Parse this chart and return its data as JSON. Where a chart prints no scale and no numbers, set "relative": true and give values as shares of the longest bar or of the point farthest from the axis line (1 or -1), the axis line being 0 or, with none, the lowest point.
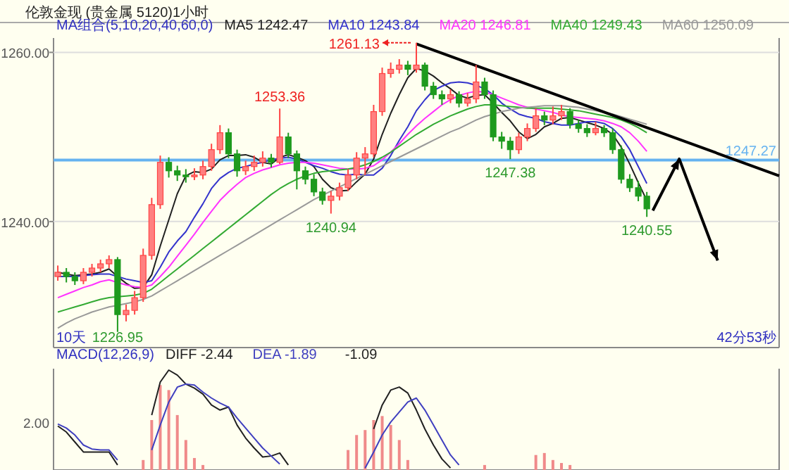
{
  "chart_data": [
    {
      "type": "candlestick",
      "title": "伦敦金现 (贵金属 5120)1小时",
      "subtitle": "MA组合(5,10,20,40,60,0)",
      "legend": "top",
      "categories": [
        null,
        null,
        null,
        null,
        null,
        null,
        null,
        null,
        null,
        null,
        null,
        null,
        null,
        null,
        null,
        null,
        null,
        null,
        null,
        null,
        null,
        null,
        null,
        null,
        null,
        null,
        null,
        null,
        null,
        null,
        null,
        null,
        null,
        null,
        null,
        null,
        null,
        null,
        null,
        null,
        null,
        null,
        null,
        null,
        null,
        null,
        null,
        null,
        null,
        null,
        null,
        null,
        null,
        null,
        null,
        null,
        null,
        null,
        null,
        null,
        null,
        null,
        null,
        null,
        null,
        null,
        null,
        null,
        null,
        null
      ],
      "ohlc": [
        [
          1233.5,
          1234.8,
          1233,
          1234
        ],
        [
          1234,
          1234.5,
          1232.8,
          1233.5
        ],
        [
          1233.5,
          1234,
          1232.5,
          1233
        ],
        [
          1233,
          1234.5,
          1232.6,
          1234
        ],
        [
          1234,
          1235,
          1233.5,
          1234.5
        ],
        [
          1234.5,
          1235.5,
          1234,
          1235
        ],
        [
          1235,
          1236,
          1234.5,
          1235.5
        ],
        [
          1235.5,
          1235.8,
          1226.95,
          1229
        ],
        [
          1229,
          1230.2,
          1228.2,
          1229.5
        ],
        [
          1229.5,
          1231.8,
          1229,
          1231
        ],
        [
          1231,
          1236.8,
          1230.5,
          1236
        ],
        [
          1236,
          1242.8,
          1235.5,
          1242
        ],
        [
          1242,
          1247.8,
          1241.5,
          1247
        ],
        [
          1247,
          1247.6,
          1245.2,
          1246
        ],
        [
          1246,
          1246.6,
          1244.8,
          1245.5
        ],
        [
          1245.5,
          1246.2,
          1244.6,
          1245.3
        ],
        [
          1245.3,
          1246.3,
          1244.9,
          1245.5
        ],
        [
          1245.5,
          1247.2,
          1245,
          1246.5
        ],
        [
          1246.5,
          1249.2,
          1246,
          1248.5
        ],
        [
          1248.5,
          1251.4,
          1248,
          1250.5
        ],
        [
          1250.5,
          1251,
          1247.5,
          1248
        ],
        [
          1248,
          1248.5,
          1245.3,
          1246
        ],
        [
          1246,
          1247.2,
          1245.5,
          1246.5
        ],
        [
          1246.5,
          1247.8,
          1246,
          1247
        ],
        [
          1247,
          1248.3,
          1246.5,
          1247.5
        ],
        [
          1247.5,
          1248,
          1246.4,
          1247
        ],
        [
          1247,
          1253.36,
          1246.8,
          1250
        ],
        [
          1250,
          1250.5,
          1247.5,
          1248
        ],
        [
          1248,
          1248.4,
          1243.8,
          1246
        ],
        [
          1246,
          1246.5,
          1244.4,
          1245
        ],
        [
          1245,
          1245.6,
          1243,
          1243.5
        ],
        [
          1243.5,
          1244,
          1242,
          1242.5
        ],
        [
          1242.5,
          1243.6,
          1240.94,
          1243
        ],
        [
          1243,
          1244.6,
          1242.5,
          1244
        ],
        [
          1244,
          1246.2,
          1243.6,
          1245.5
        ],
        [
          1245.5,
          1248.2,
          1245,
          1247.5
        ],
        [
          1247.5,
          1248.8,
          1245.5,
          1248
        ],
        [
          1248,
          1253.8,
          1247.6,
          1253
        ],
        [
          1253,
          1258.2,
          1252.5,
          1257.5
        ],
        [
          1257.5,
          1258.8,
          1257,
          1258
        ],
        [
          1258,
          1259.2,
          1257.5,
          1258.5
        ],
        [
          1258.5,
          1259,
          1257.3,
          1258
        ],
        [
          1258,
          1261.13,
          1257.6,
          1258.5
        ],
        [
          1258.5,
          1258.8,
          1255.5,
          1256
        ],
        [
          1256,
          1256.5,
          1254.5,
          1255
        ],
        [
          1255,
          1255.5,
          1253.8,
          1254.5
        ],
        [
          1254.5,
          1255.6,
          1254,
          1255
        ],
        [
          1255,
          1255.4,
          1253.5,
          1254
        ],
        [
          1254,
          1255.2,
          1253.6,
          1254.5
        ],
        [
          1254.5,
          1258.5,
          1254,
          1256.5
        ],
        [
          1256.5,
          1257,
          1254.5,
          1255
        ],
        [
          1255,
          1255.5,
          1249.5,
          1250
        ],
        [
          1250,
          1250.6,
          1248.6,
          1249.5
        ],
        [
          1249.5,
          1250,
          1247.38,
          1248.5
        ],
        [
          1248.5,
          1250.5,
          1248,
          1250
        ],
        [
          1250,
          1251.6,
          1249.5,
          1251
        ],
        [
          1251,
          1253.4,
          1250.6,
          1252.5
        ],
        [
          1252.5,
          1253,
          1251.4,
          1252
        ],
        [
          1252,
          1253.6,
          1251.5,
          1252.5
        ],
        [
          1252.5,
          1253.8,
          1252,
          1253
        ],
        [
          1253,
          1253.4,
          1251,
          1251.5
        ],
        [
          1251.5,
          1252,
          1250.5,
          1251
        ],
        [
          1251,
          1251.5,
          1250,
          1250.5
        ],
        [
          1250.5,
          1251.8,
          1250.2,
          1251
        ],
        [
          1251,
          1251.4,
          1250,
          1250.5
        ],
        [
          1250.5,
          1251,
          1248,
          1248.5
        ],
        [
          1248.5,
          1249,
          1244.5,
          1245
        ],
        [
          1245,
          1245.6,
          1243.5,
          1244
        ],
        [
          1244,
          1244.8,
          1242.4,
          1243
        ],
        [
          1243,
          1243.5,
          1240.55,
          1241.5
        ]
      ],
      "series": [
        {
          "name": "MA5 1242.47",
          "type": "line",
          "color": "#202020",
          "values": [
            1234,
            1233.8,
            1233.6,
            1233.7,
            1233.8,
            1234,
            1234.4,
            1233.5,
            1232.7,
            1232.1,
            1232.2,
            1233.7,
            1237.1,
            1240.2,
            1243.3,
            1245.4,
            1245.9,
            1245.8,
            1246.2,
            1247.3,
            1247.8,
            1247.8,
            1247.9,
            1247.6,
            1247,
            1246.8,
            1247.6,
            1247.9,
            1247.6,
            1247.2,
            1246.5,
            1245,
            1244,
            1243.6,
            1243.7,
            1244.7,
            1245.6,
            1247.4,
            1250.3,
            1252.8,
            1255,
            1257,
            1258.1,
            1257.8,
            1257.2,
            1256.4,
            1255.7,
            1254.9,
            1254.6,
            1254.9,
            1255,
            1254,
            1252.9,
            1251.9,
            1250.6,
            1249.8,
            1250.3,
            1251.2,
            1251.6,
            1252.2,
            1252.3,
            1252,
            1251.7,
            1251.4,
            1251,
            1250.3,
            1248.8,
            1246.8,
            1244.6,
            1242.5
          ]
        },
        {
          "name": "MA10 1243.84",
          "type": "line",
          "color": "#3333cc",
          "values": [
            1233.5,
            1233.5,
            1233.5,
            1233.6,
            1233.7,
            1233.8,
            1233.8,
            1233.5,
            1233.2,
            1233,
            1232.8,
            1233,
            1234.6,
            1236.4,
            1237.7,
            1238.8,
            1240.5,
            1242.1,
            1243.9,
            1245.1,
            1245.8,
            1246.3,
            1246.5,
            1246.8,
            1247,
            1247.3,
            1247.5,
            1247.6,
            1247.4,
            1247,
            1246.6,
            1246.3,
            1245.9,
            1245.6,
            1245.5,
            1245.6,
            1245.5,
            1245.5,
            1246.3,
            1247.8,
            1249.6,
            1251.2,
            1253.1,
            1254.4,
            1255.5,
            1256,
            1256.4,
            1256.5,
            1256.4,
            1256.1,
            1255.7,
            1255,
            1254,
            1253.3,
            1252.7,
            1252.4,
            1252.2,
            1251.8,
            1251.6,
            1251.4,
            1251.4,
            1251.6,
            1251.8,
            1251.8,
            1251.6,
            1251,
            1250,
            1248.5,
            1246.5,
            1244.5
          ]
        },
        {
          "name": "MA20 1246.81",
          "type": "line",
          "color": "#ff33ff",
          "values": [
            1231,
            1231.4,
            1231.8,
            1232.2,
            1232.5,
            1232.9,
            1233.1,
            1232.8,
            1232.5,
            1232.3,
            1232.2,
            1232.5,
            1233.5,
            1234.6,
            1235.9,
            1237.2,
            1238.5,
            1239.9,
            1241.2,
            1242.5,
            1243.5,
            1244.4,
            1245.2,
            1245.7,
            1246.1,
            1246.4,
            1246.7,
            1246.9,
            1247,
            1247,
            1246.9,
            1246.7,
            1246.5,
            1246.3,
            1246.2,
            1246.2,
            1246.3,
            1246.6,
            1247.3,
            1248.2,
            1249.2,
            1250.3,
            1251.3,
            1252.2,
            1253,
            1253.8,
            1254.4,
            1254.9,
            1255.2,
            1255.4,
            1255.3,
            1255,
            1254.6,
            1254.2,
            1253.8,
            1253.5,
            1253.3,
            1253.1,
            1252.9,
            1252.6,
            1252.4,
            1252.3,
            1252.2,
            1252.1,
            1251.9,
            1251.6,
            1251.2,
            1250.5,
            1249.5,
            1248.3
          ]
        },
        {
          "name": "MA40 1249.43",
          "type": "line",
          "color": "#33aa33",
          "values": [
            1229.3,
            1229.6,
            1229.9,
            1230.2,
            1230.5,
            1230.8,
            1231,
            1231.1,
            1231.2,
            1231.3,
            1231.5,
            1232,
            1232.8,
            1233.6,
            1234.4,
            1235.2,
            1236,
            1236.8,
            1237.6,
            1238.4,
            1239.2,
            1240,
            1240.8,
            1241.6,
            1242.4,
            1243.2,
            1243.9,
            1244.5,
            1245,
            1245.4,
            1245.7,
            1245.9,
            1246,
            1246.1,
            1246.2,
            1246.4,
            1246.7,
            1247.1,
            1247.6,
            1248.2,
            1248.9,
            1249.6,
            1250.3,
            1250.9,
            1251.5,
            1252,
            1252.5,
            1252.9,
            1253.3,
            1253.6,
            1253.8,
            1253.8,
            1253.7,
            1253.6,
            1253.5,
            1253.4,
            1253.4,
            1253.4,
            1253.4,
            1253.3,
            1253.2,
            1253.1,
            1252.9,
            1252.7,
            1252.5,
            1252.3,
            1252,
            1251.6,
            1251.1,
            1250.5
          ]
        },
        {
          "name": "MA60 1250.09",
          "type": "line",
          "color": "#999999",
          "values": [
            1227.4,
            1228,
            1228.5,
            1228.9,
            1229.3,
            1229.6,
            1229.9,
            1230.1,
            1230.3,
            1230.5,
            1230.8,
            1231.2,
            1231.8,
            1232.4,
            1233,
            1233.6,
            1234.2,
            1234.8,
            1235.4,
            1236,
            1236.6,
            1237.2,
            1237.8,
            1238.4,
            1239,
            1239.6,
            1240.2,
            1240.8,
            1241.4,
            1242,
            1242.6,
            1243.1,
            1243.6,
            1244.1,
            1244.6,
            1245.1,
            1245.6,
            1246.1,
            1246.6,
            1247.1,
            1247.6,
            1248.1,
            1248.6,
            1249.1,
            1249.6,
            1250.1,
            1250.6,
            1251,
            1251.5,
            1252,
            1252.4,
            1252.7,
            1253,
            1253.2,
            1253.4,
            1253.5,
            1253.6,
            1253.7,
            1253.7,
            1253.7,
            1253.6,
            1253.5,
            1253.3,
            1253.1,
            1252.9,
            1252.7,
            1252.4,
            1252.1,
            1251.8,
            1251.5
          ]
        },
        {
          "type": "line",
          "color": "#000000",
          "values": [
            null,
            null,
            null,
            null,
            null,
            null,
            null,
            null,
            null,
            null,
            null,
            null,
            null,
            null,
            null,
            null,
            null,
            null,
            null,
            null,
            null,
            null,
            null,
            null,
            null,
            null,
            null,
            null,
            null,
            null,
            null,
            null,
            null,
            null,
            null,
            null,
            null,
            null,
            null,
            null,
            null,
            null,
            1261,
            null,
            null,
            null,
            null,
            null,
            null,
            null,
            null,
            null,
            null,
            null,
            null,
            null,
            null,
            null,
            null,
            null,
            null,
            null,
            null,
            null,
            null,
            null,
            null,
            null,
            null,
            1251.1
          ]
        }
      ],
      "ylim": [
        1225.1,
        1261.7
      ],
      "yticks": [
        {
          "value": 1260,
          "label": "1260.00"
        },
        {
          "value": 1240,
          "label": "1240.00"
        }
      ],
      "grid": "y",
      "ref_lines": [
        {
          "axis": "y",
          "value": 1247.27,
          "label": "1247.27",
          "color": "#66b3f0"
        }
      ],
      "annotations": [
        "1261.13",
        {
          "text": "1253.36",
          "y": 1253.36
        },
        {
          "text": "1240.94",
          "y": 1240.94
        },
        {
          "text": "1247.38",
          "y": 1247.38
        },
        {
          "text": "1240.55",
          "y": 1240.55
        },
        {
          "text": "1226.95",
          "y": 1226.95
        },
        "10天",
        "42分53秒"
      ]
    },
    {
      "type": "line",
      "title": "MACD(12,26,9)",
      "relative": true,
      "legend": "top",
      "categories": [
        null,
        null,
        null,
        null,
        null,
        null,
        null,
        null,
        null,
        null,
        null,
        null,
        null,
        null,
        null,
        null,
        null,
        null,
        null,
        null,
        null,
        null,
        null,
        null,
        null,
        null,
        null,
        null,
        null,
        null,
        null,
        null,
        null,
        null,
        null,
        null,
        null,
        null,
        null,
        null,
        null,
        null,
        null,
        null,
        null,
        null,
        null,
        null,
        null,
        null,
        null,
        null,
        null,
        null,
        null,
        null,
        null,
        null,
        null,
        null,
        null,
        null,
        null,
        null,
        null,
        null,
        null,
        null,
        null,
        null
      ],
      "series": [
        {
          "name": "DIFF -2.44",
          "color": "#202020",
          "values": [
            0.44,
            0.38,
            0.28,
            0.18,
            0.18,
            0.18,
            0.18,
            0.05,
            null,
            null,
            null,
            0.55,
            0.88,
            1,
            0.95,
            0.86,
            0.82,
            0.76,
            0.65,
            0.6,
            0.63,
            0.45,
            0.32,
            0.22,
            0.13,
            0.14,
            0.17,
            0.05,
            null,
            null,
            null,
            null,
            null,
            null,
            null,
            null,
            null,
            0.41,
            0.65,
            0.8,
            0.83,
            0.77,
            0.6,
            0.41,
            0.25,
            0.11,
            0.02,
            null,
            null,
            null,
            null,
            null,
            null,
            null,
            null,
            null,
            null,
            null,
            null,
            null,
            null,
            null,
            null,
            null,
            null,
            null,
            null,
            null,
            null,
            null
          ]
        },
        {
          "name": "DEA -1.89",
          "color": "#3f3fbf",
          "values": [
            0.46,
            0.42,
            0.35,
            0.25,
            0.21,
            0.2,
            0.2,
            0.1,
            null,
            null,
            null,
            0.2,
            0.45,
            0.68,
            0.83,
            0.86,
            0.85,
            0.78,
            0.72,
            0.67,
            0.63,
            0.52,
            0.42,
            0.32,
            0.22,
            0.14,
            0.06,
            null,
            null,
            null,
            null,
            null,
            null,
            null,
            null,
            null,
            0.02,
            0.18,
            0.35,
            0.48,
            0.58,
            0.68,
            0.72,
            0.6,
            0.45,
            0.3,
            0.15,
            0.05,
            null,
            null,
            null,
            null,
            null,
            null,
            null,
            null,
            null,
            null,
            null,
            null,
            null,
            null,
            null,
            null,
            null,
            null,
            null,
            null,
            null,
            null
          ]
        },
        {
          "type": "bar",
          "color": "#f08a8a",
          "values": [
            null,
            null,
            null,
            null,
            null,
            null,
            null,
            null,
            null,
            null,
            0.1,
            0.5,
            0.85,
            0.8,
            0.55,
            0.3,
            0.12,
            0.05,
            null,
            null,
            null,
            null,
            null,
            null,
            null,
            null,
            null,
            null,
            null,
            null,
            null,
            null,
            null,
            null,
            0.2,
            0.35,
            0.4,
            0.5,
            0.54,
            0.45,
            0.3,
            0.1,
            null,
            null,
            null,
            null,
            null,
            null,
            null,
            null,
            0.05,
            null,
            null,
            null,
            null,
            null,
            0.15,
            0.17,
            0.1,
            0.07,
            0.05,
            null,
            null,
            null,
            null,
            null,
            null,
            null,
            null,
            null
          ]
        }
      ],
      "annotations": [
        "-1.09",
        "2.00"
      ]
    }
  ]
}
